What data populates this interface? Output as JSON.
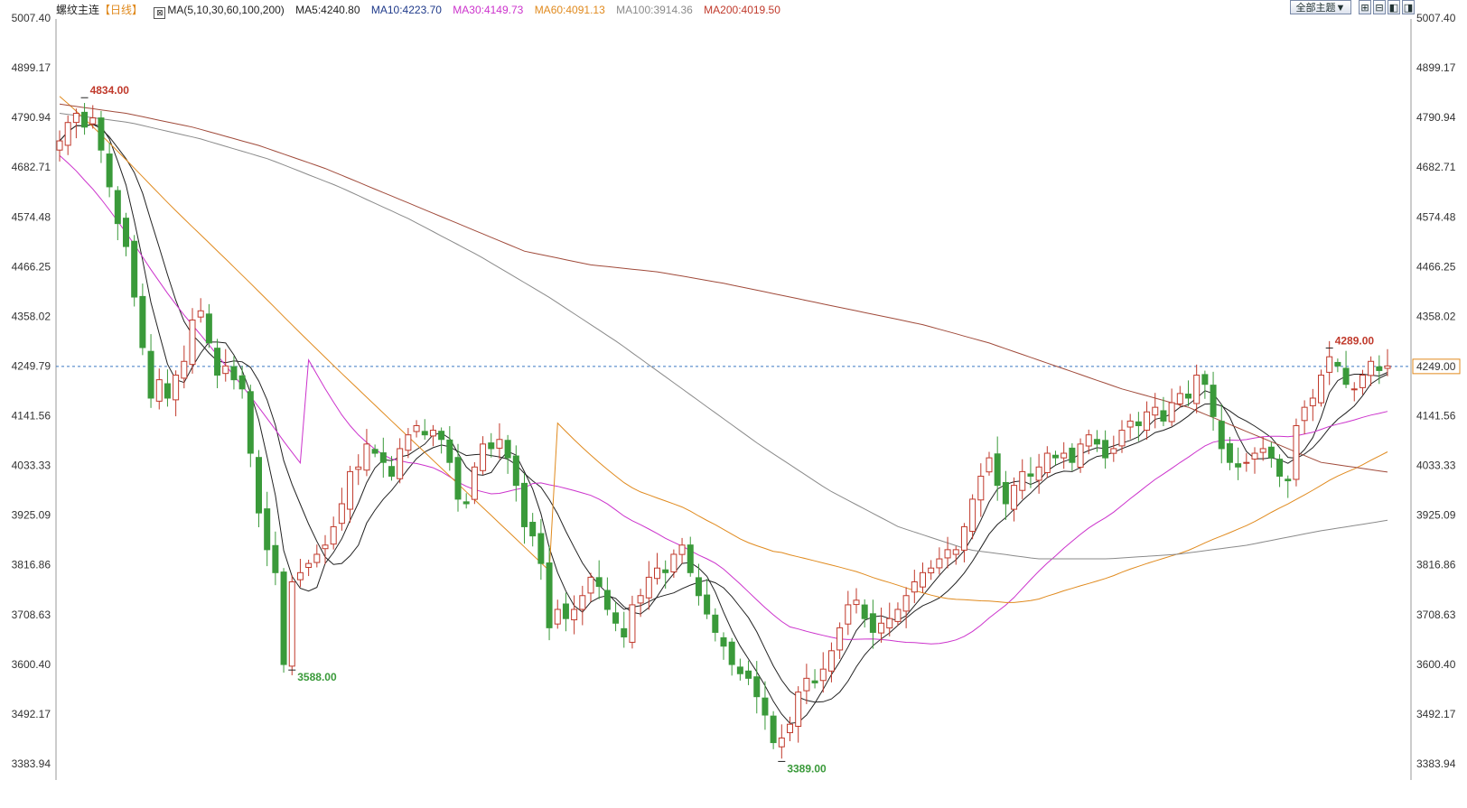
{
  "header": {
    "instrument": "螺纹主连",
    "period": "【日线】",
    "ma_icon": "ma-settings-icon",
    "ma_params": "MA(5,10,30,60,100,200)",
    "ma5": "MA5:4240.80",
    "ma10": "MA10:4223.70",
    "ma30": "MA30:4149.73",
    "ma60": "MA60:4091.13",
    "ma100": "MA100:3914.36",
    "ma200": "MA200:4019.50"
  },
  "toolbar": {
    "theme_button": "全部主题▼",
    "icons": [
      "zoom-in-icon",
      "zoom-out-icon",
      "prev-icon",
      "next-icon"
    ]
  },
  "colors": {
    "up": "#c0392b",
    "down": "#3a9a3a",
    "ma5": "#222222",
    "ma10": "#222222",
    "ma30": "#cc33cc",
    "ma60": "#e08a1e",
    "ma100": "#8a8a8a",
    "ma200": "#a04a3a",
    "current_line": "#3b78c4",
    "current_label": "#e08a1e"
  },
  "chart_data": {
    "type": "candlestick",
    "yaxis_ticks": [
      "5007.40",
      "4899.17",
      "4790.94",
      "4682.71",
      "4574.48",
      "4466.25",
      "4358.02",
      "4249.79",
      "4141.56",
      "4033.33",
      "3925.09",
      "3816.86",
      "3708.63",
      "3600.40",
      "3492.17",
      "3383.94"
    ],
    "ylim": [
      3383.94,
      5007.4
    ],
    "current_price": "4249.00",
    "annotations": [
      {
        "text": "4834.00",
        "type": "high"
      },
      {
        "text": "3588.00",
        "type": "low"
      },
      {
        "text": "3389.00",
        "type": "low"
      },
      {
        "text": "4289.00",
        "type": "high"
      }
    ],
    "closes": [
      4740,
      4780,
      4800,
      4770,
      4790,
      4720,
      4640,
      4560,
      4510,
      4400,
      4290,
      4180,
      4220,
      4180,
      4230,
      4260,
      4350,
      4370,
      4300,
      4230,
      4250,
      4220,
      4200,
      4060,
      3930,
      3850,
      3800,
      3600,
      3780,
      3800,
      3820,
      3840,
      3860,
      3900,
      3950,
      4020,
      4030,
      4080,
      4060,
      4040,
      4010,
      4070,
      4100,
      4120,
      4100,
      4110,
      4090,
      4040,
      3960,
      3950,
      4030,
      4080,
      4070,
      4090,
      4050,
      3990,
      3900,
      3880,
      3820,
      3680,
      3720,
      3700,
      3720,
      3750,
      3790,
      3770,
      3720,
      3690,
      3660,
      3730,
      3750,
      3790,
      3810,
      3800,
      3840,
      3860,
      3800,
      3750,
      3710,
      3670,
      3640,
      3600,
      3580,
      3570,
      3530,
      3490,
      3430,
      3440,
      3470,
      3540,
      3570,
      3560,
      3590,
      3630,
      3680,
      3730,
      3740,
      3700,
      3670,
      3690,
      3700,
      3720,
      3750,
      3780,
      3800,
      3810,
      3830,
      3850,
      3850,
      3900,
      3960,
      4010,
      4050,
      3990,
      3950,
      3990,
      4020,
      4010,
      4030,
      4060,
      4050,
      4060,
      4040,
      4080,
      4100,
      4080,
      4050,
      4070,
      4110,
      4130,
      4120,
      4150,
      4160,
      4130,
      4170,
      4190,
      4180,
      4230,
      4210,
      4140,
      4070,
      4040,
      4030,
      4040,
      4060,
      4070,
      4050,
      4010,
      4000,
      4120,
      4160,
      4180,
      4230,
      4270,
      4250,
      4210,
      4200,
      4230,
      4260,
      4240,
      4250
    ],
    "ma": {
      "MA5": "4240.80",
      "MA10": "4223.70",
      "MA30": "4149.73",
      "MA60": "4091.13",
      "MA100": "3914.36",
      "MA200": "4019.50"
    },
    "ma100_est": [
      4800,
      4780,
      4745,
      4700,
      4640,
      4570,
      4490,
      4400,
      4300,
      4190,
      4080,
      3980,
      3900,
      3850,
      3830,
      3830,
      3840,
      3860,
      3890,
      3914
    ],
    "ma200_est": [
      4820,
      4800,
      4770,
      4730,
      4680,
      4620,
      4560,
      4500,
      4470,
      4455,
      4430,
      4400,
      4370,
      4340,
      4300,
      4250,
      4200,
      4160,
      4100,
      4040,
      4019
    ]
  }
}
